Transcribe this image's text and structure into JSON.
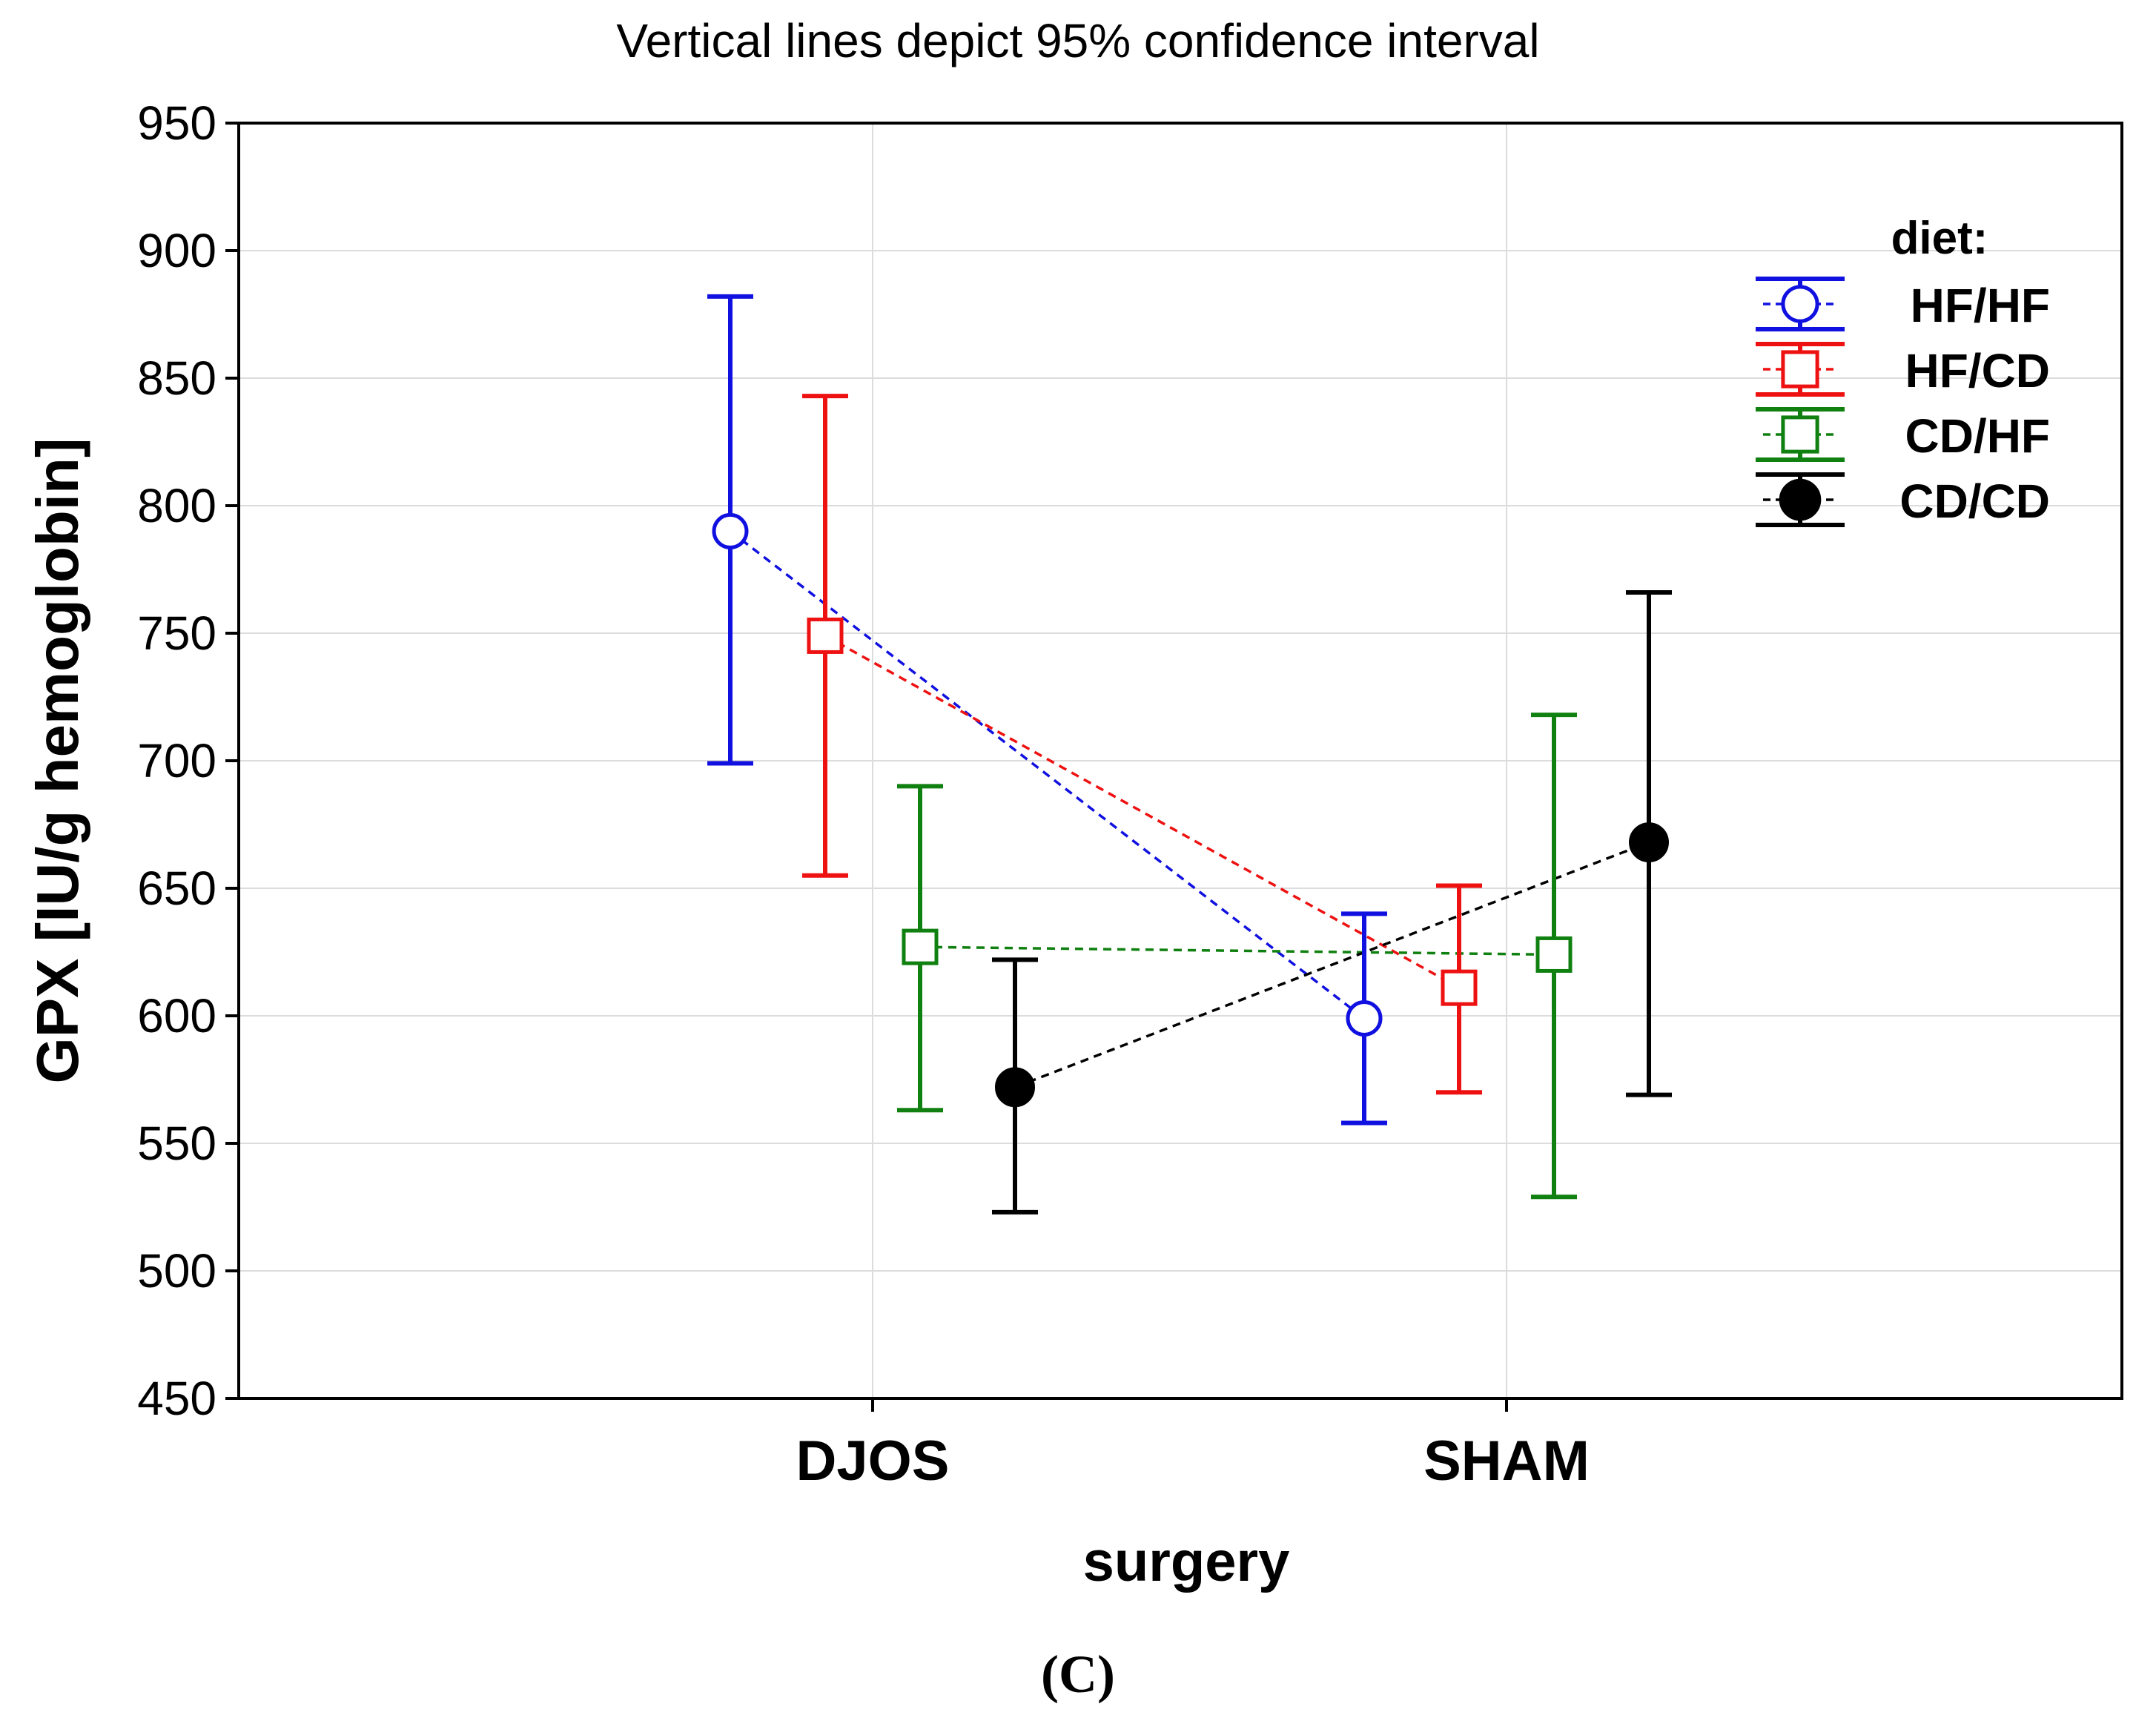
{
  "chart_data": {
    "type": "scatter",
    "title": "Vertical lines depict 95% confidence interval",
    "xlabel": "surgery",
    "ylabel": "GPX [IU/g hemoglobin]",
    "panel_label": "(C)",
    "categories": [
      "DJOS",
      "SHAM"
    ],
    "ylim": [
      450,
      950
    ],
    "yticks": [
      450,
      500,
      550,
      600,
      650,
      700,
      750,
      800,
      850,
      900,
      950
    ],
    "ytick_labels": [
      "450",
      "500",
      "550",
      "600",
      "650",
      "700",
      "750",
      "800",
      "850",
      "900",
      "950"
    ],
    "grid": true,
    "legend_title": "diet:",
    "legend_position": "top-right",
    "series": [
      {
        "name": "HF/HF",
        "color": "#1010e0",
        "marker": "circle-open",
        "values": [
          790,
          599
        ],
        "ci_low": [
          699,
          558
        ],
        "ci_high": [
          882,
          640
        ]
      },
      {
        "name": "HF/CD",
        "color": "#ee1111",
        "marker": "square-open",
        "values": [
          749,
          611
        ],
        "ci_low": [
          655,
          570
        ],
        "ci_high": [
          843,
          651
        ]
      },
      {
        "name": "CD/HF",
        "color": "#108010",
        "marker": "square-open",
        "values": [
          627,
          624
        ],
        "ci_low": [
          563,
          529
        ],
        "ci_high": [
          690,
          718
        ]
      },
      {
        "name": "CD/CD",
        "color": "#000000",
        "marker": "circle-filled",
        "values": [
          572,
          668
        ],
        "ci_low": [
          523,
          569
        ],
        "ci_high": [
          622,
          766
        ]
      }
    ]
  }
}
